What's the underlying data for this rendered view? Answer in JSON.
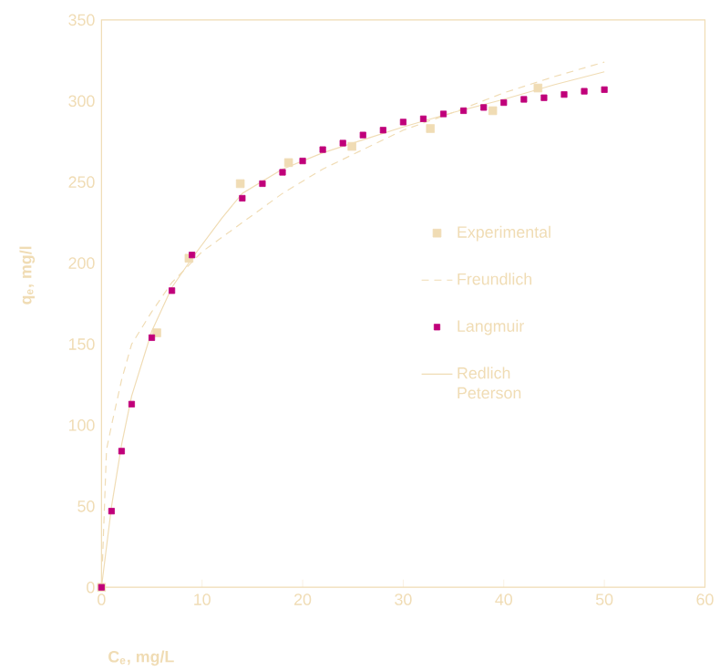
{
  "chart_data": {
    "type": "scatter",
    "xlabel": "C$_{e}$, mg/L",
    "ylabel": "q$_{e}$, mg/l",
    "xlim": [
      0,
      60
    ],
    "ylim": [
      0,
      350
    ],
    "xticks": [
      0,
      10,
      20,
      30,
      40,
      50,
      60
    ],
    "yticks": [
      0,
      50,
      100,
      150,
      200,
      250,
      300,
      350
    ],
    "grid": false,
    "legend": "right",
    "series": [
      {
        "name": "Experimental",
        "marker": "square",
        "color": "#f0dcb4",
        "x": [
          0,
          5.5,
          8.7,
          13.8,
          18.6,
          24.9,
          32.7,
          38.9,
          43.4
        ],
        "values": [
          0,
          157,
          203,
          249,
          262,
          272,
          283,
          294,
          308
        ]
      },
      {
        "name": "Freundlich",
        "type": "line",
        "line_style": "dashed",
        "marker": "none",
        "color": "#f0dcb4",
        "x": [
          0.1,
          0.5,
          1,
          2,
          3,
          5,
          7,
          10,
          14,
          18,
          22,
          26,
          30,
          35,
          40,
          45,
          50
        ],
        "values": [
          16,
          85,
          100,
          128,
          150,
          170,
          188,
          207,
          225,
          243,
          258,
          270,
          282,
          293,
          305,
          315,
          324
        ]
      },
      {
        "name": "Langmuir",
        "marker": "square",
        "color": "#c0007a",
        "x": [
          0,
          1,
          2,
          3,
          5,
          7,
          9,
          14,
          16,
          18,
          20,
          22,
          24,
          26,
          28,
          30,
          32,
          34,
          36,
          38,
          40,
          42,
          44,
          46,
          48,
          50
        ],
        "values": [
          0,
          47,
          84,
          113,
          154,
          183,
          205,
          240,
          249,
          256,
          263,
          270,
          274,
          279,
          282,
          287,
          289,
          292,
          294,
          296,
          299,
          301,
          302,
          304,
          306,
          307
        ]
      },
      {
        "name": "Redlich Peterson",
        "type": "line",
        "line_style": "solid",
        "marker": "none",
        "color": "#f0dcb4",
        "x": [
          0,
          1,
          2,
          3,
          5,
          7,
          9,
          12,
          14,
          18,
          22,
          26,
          30,
          35,
          40,
          45,
          50
        ],
        "values": [
          0,
          50,
          88,
          118,
          158,
          185,
          203,
          228,
          243,
          258,
          268,
          276,
          284,
          293,
          301,
          310,
          318
        ]
      }
    ]
  }
}
